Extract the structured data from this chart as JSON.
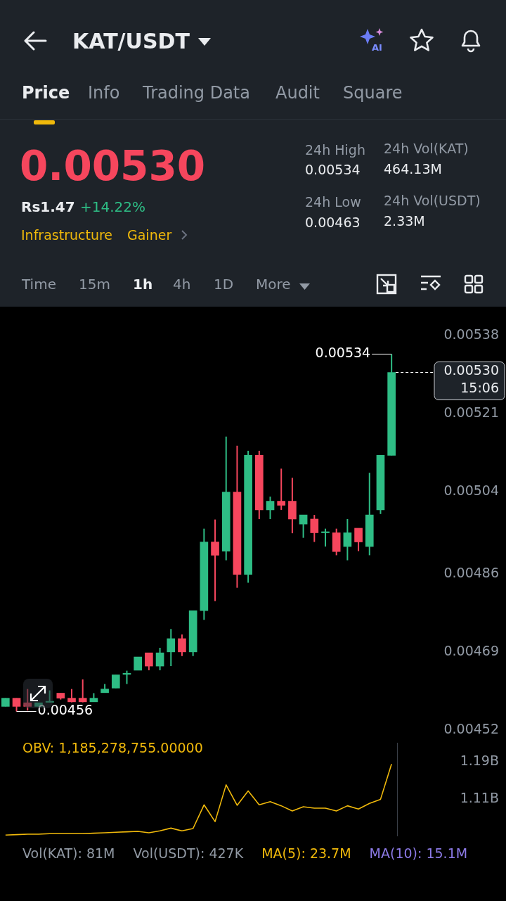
{
  "chart_data": [
    {
      "type": "other",
      "title": "KAT/USDT",
      "annotations": [
        "Price",
        "Info",
        "Trading Data",
        "Audit",
        "Square",
        "0.00530",
        "Rs1.47",
        "+14.22%",
        "Infrastructure",
        "Gainer",
        "24h High",
        "0.00534",
        "24h Low",
        "0.00463",
        "24h Vol(KAT)",
        "464.13M",
        "24h Vol(USDT)",
        "2.33M",
        "Time",
        "15m",
        "1h",
        "4h",
        "1D",
        "More",
        "AI"
      ]
    },
    {
      "type": "candlestick",
      "categories": [
        null,
        null,
        null,
        null,
        null,
        null,
        null,
        null,
        null,
        null,
        null,
        null,
        null,
        null,
        null,
        null,
        null,
        null,
        null,
        null,
        null,
        null,
        null,
        null,
        null,
        null,
        null,
        null,
        null,
        null,
        null,
        null,
        null,
        null,
        null,
        null
      ],
      "ohlc": [
        [
          0.004571,
          0.004589,
          0.004571,
          0.004589
        ],
        [
          0.004589,
          0.004589,
          0.00456,
          0.004571
        ],
        [
          0.004579,
          0.004609,
          0.004562,
          0.004571
        ],
        [
          0.004571,
          0.004579,
          0.004571,
          0.004579
        ],
        [
          0.00458,
          0.004606,
          0.00458,
          0.004581
        ],
        [
          0.0046,
          0.0046,
          0.004586,
          0.004589
        ],
        [
          0.004589,
          0.004609,
          0.00458,
          0.004581
        ],
        [
          0.004589,
          0.00463,
          0.00458,
          0.004581
        ],
        [
          0.004581,
          0.0046,
          0.004581,
          0.004589
        ],
        [
          0.004601,
          0.00462,
          0.004601,
          0.004609
        ],
        [
          0.004611,
          0.00464,
          0.004611,
          0.00464
        ],
        [
          0.004641,
          0.004649,
          0.00462,
          0.004642
        ],
        [
          0.00465,
          0.004679,
          0.00465,
          0.004679
        ],
        [
          0.004688,
          0.004688,
          0.00465,
          0.004659
        ],
        [
          0.004659,
          0.004699,
          0.00465,
          0.004688
        ],
        [
          0.00469,
          0.00474,
          0.004659,
          0.004719
        ],
        [
          0.004719,
          0.004728,
          0.004681,
          0.00469
        ],
        [
          0.00469,
          0.00478,
          0.004681,
          0.00478
        ],
        [
          0.00478,
          0.004959,
          0.00476,
          0.00493
        ],
        [
          0.00493,
          0.004979,
          0.004801,
          0.004901
        ],
        [
          0.00491,
          0.00516,
          0.00489,
          0.005039
        ],
        [
          0.005039,
          0.00514,
          0.00483,
          0.004859
        ],
        [
          0.004859,
          0.005129,
          0.004841,
          0.005119
        ],
        [
          0.005119,
          0.005129,
          0.00498,
          0.005
        ],
        [
          0.005,
          0.005029,
          0.00498,
          0.005019
        ],
        [
          0.005019,
          0.00509,
          0.005,
          0.00501
        ],
        [
          0.005019,
          0.00507,
          0.004949,
          0.00498
        ],
        [
          0.004969,
          0.004989,
          0.004939,
          0.004989
        ],
        [
          0.00498,
          0.004989,
          0.00493,
          0.00495
        ],
        [
          0.00495,
          0.004959,
          0.00492,
          0.004951
        ],
        [
          0.00495,
          0.004959,
          0.004901,
          0.004909
        ],
        [
          0.00492,
          0.00498,
          0.00489,
          0.00495
        ],
        [
          0.00496,
          0.00496,
          0.00491,
          0.00493
        ],
        [
          0.00492,
          0.005081,
          0.004901,
          0.004989
        ],
        [
          0.005,
          0.005119,
          0.004991,
          0.005119
        ],
        [
          0.005119,
          0.00534,
          0.005119,
          0.0053
        ]
      ],
      "colors": [
        "#2ebd85",
        "#f6465d",
        "#f6465d",
        "#2ebd85",
        "#2ebd85",
        "#f6465d",
        "#f6465d",
        "#f6465d",
        "#2ebd85",
        "#2ebd85",
        "#2ebd85",
        "#2ebd85",
        "#2ebd85",
        "#f6465d",
        "#2ebd85",
        "#2ebd85",
        "#f6465d",
        "#2ebd85",
        "#2ebd85",
        "#f6465d",
        "#2ebd85",
        "#f6465d",
        "#2ebd85",
        "#f6465d",
        "#2ebd85",
        "#f6465d",
        "#f6465d",
        "#2ebd85",
        "#f6465d",
        "#2ebd85",
        "#f6465d",
        "#2ebd85",
        "#f6465d",
        "#2ebd85",
        "#2ebd85",
        "#2ebd85"
      ],
      "ylim": [
        0.00452,
        0.00538
      ],
      "yticks": [
        {
          "value": 0.00538,
          "label": "0.00538"
        },
        {
          "value": 0.00521,
          "label": "0.00521"
        },
        {
          "value": 0.00504,
          "label": "0.00504"
        },
        {
          "value": 0.00486,
          "label": "0.00486"
        },
        {
          "value": 0.00469,
          "label": "0.00469"
        },
        {
          "value": 0.00452,
          "label": "0.00452"
        }
      ],
      "tick_labels": "y",
      "annotations": [
        "0.00534",
        "0.00456"
      ],
      "ref_lines": [
        {
          "axis": "y",
          "value": 0.0053,
          "label": "0.00530\n15:06",
          "line_style": "dashed",
          "color": "#ffffff"
        }
      ]
    },
    {
      "type": "line",
      "title": "OBV: 1,185,278,755.00000",
      "categories": [
        null,
        null,
        null,
        null,
        null,
        null,
        null,
        null,
        null,
        null,
        null,
        null,
        null,
        null,
        null,
        null,
        null,
        null,
        null,
        null,
        null,
        null,
        null,
        null,
        null,
        null,
        null,
        null,
        null,
        null,
        null,
        null,
        null,
        null,
        null,
        null
      ],
      "series": [
        {
          "color": "#f0b90b",
          "values": [
            1.032,
            1.033,
            1.034,
            1.034,
            1.035,
            1.035,
            1.035,
            1.035,
            1.036,
            1.037,
            1.038,
            1.039,
            1.04,
            1.037,
            1.041,
            1.047,
            1.041,
            1.046,
            1.097,
            1.061,
            1.14,
            1.096,
            1.127,
            1.097,
            1.104,
            1.095,
            1.084,
            1.093,
            1.09,
            1.09,
            1.084,
            1.095,
            1.088,
            1.1,
            1.109,
            1.185
          ]
        }
      ],
      "ylim": [
        1.03,
        1.23
      ],
      "yticks": [
        {
          "value": 1.19,
          "label": "1.19B"
        },
        {
          "value": 1.11,
          "label": "1.11B"
        }
      ],
      "tick_labels": "y",
      "marker": "none"
    },
    {
      "type": "other",
      "annotations": [
        "Vol(KAT): 81M",
        "Vol(USDT): 427K",
        "MA(5): 23.7M",
        "MA(10): 15.1M"
      ]
    }
  ]
}
